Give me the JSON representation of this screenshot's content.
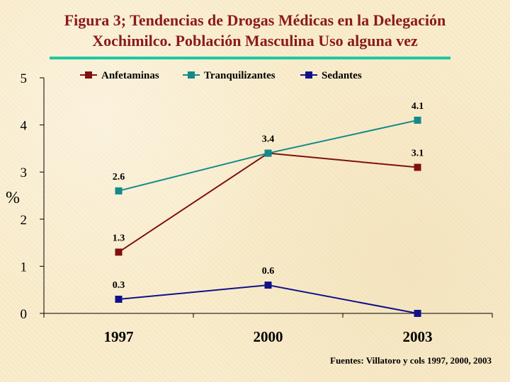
{
  "title_lines": [
    "Figura 3; Tendencias de Drogas Médicas en  la Delegación",
    "Xochimilco. Población Masculina Uso alguna vez"
  ],
  "source": "Fuentes: Villatoro y cols 1997, 2000, 2003",
  "colors": {
    "title": "#8b1a1a",
    "rule": "#1fc7a0",
    "background": "#f9eccb"
  },
  "chart_data": {
    "type": "line",
    "x": [
      "1997",
      "2000",
      "2003"
    ],
    "ylabel": "%",
    "ylim": [
      0,
      5
    ],
    "yticks": [
      0,
      1,
      2,
      3,
      4,
      5
    ],
    "grid": false,
    "legend_position": "top",
    "series": [
      {
        "name": "Anfetaminas",
        "color": "#7f1010",
        "values": [
          1.3,
          3.4,
          3.1
        ],
        "labels": [
          "1.3",
          "",
          "3.1"
        ]
      },
      {
        "name": "Tranquilizantes",
        "color": "#138a8a",
        "values": [
          2.6,
          3.4,
          4.1
        ],
        "labels": [
          "2.6",
          "3.4",
          "4.1"
        ]
      },
      {
        "name": "Sedantes",
        "color": "#10108a",
        "values": [
          0.3,
          0.6,
          0.0
        ],
        "labels": [
          "0.3",
          "0.6",
          ""
        ]
      }
    ]
  }
}
